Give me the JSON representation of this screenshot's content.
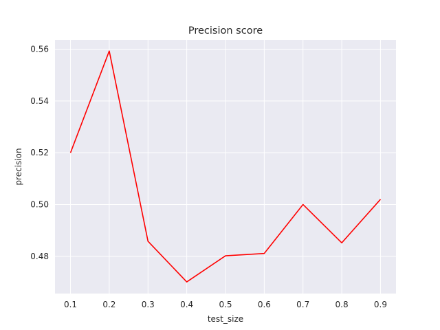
{
  "chart_data": {
    "type": "line",
    "title": "Precision score",
    "xlabel": "test_size",
    "ylabel": "precision",
    "x": [
      0.1,
      0.2,
      0.3,
      0.4,
      0.5,
      0.6,
      0.7,
      0.8,
      0.9
    ],
    "series": [
      {
        "values": [
          0.52,
          0.5593,
          0.4858,
          0.4701,
          0.4802,
          0.4811,
          0.5,
          0.4852,
          0.502
        ],
        "color": "#ff0000"
      }
    ],
    "xticks": [
      "0.1",
      "0.2",
      "0.3",
      "0.4",
      "0.5",
      "0.6",
      "0.7",
      "0.8",
      "0.9"
    ],
    "yticks": [
      "0.48",
      "0.50",
      "0.52",
      "0.54",
      "0.56"
    ],
    "xlim": [
      0.06,
      0.94
    ],
    "ylim": [
      0.4656,
      0.5636
    ],
    "grid": true,
    "background": "#eaeaf2",
    "grid_color": "#ffffff"
  }
}
